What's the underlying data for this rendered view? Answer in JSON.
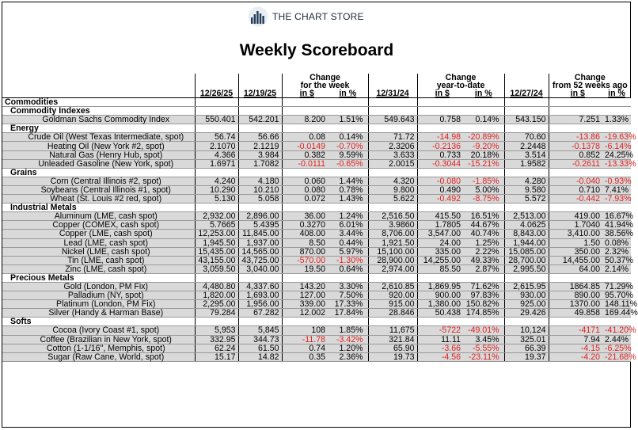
{
  "logo": {
    "text": "THE CHART STORE",
    "icon": "chart-bars-logo-icon"
  },
  "title": "Weekly Scoreboard",
  "header": {
    "groups": [
      "Change",
      "for the week",
      "Change",
      "year-to-date",
      "Change",
      "from 52 weeks ago"
    ],
    "dates": [
      "12/26/25",
      "12/19/25",
      "12/31/24",
      "12/27/24"
    ],
    "units": [
      "in $",
      "in %"
    ]
  },
  "sections": [
    {
      "label": "Commodities",
      "groups": [
        {
          "label": "Commodity Indexes",
          "rows": [
            [
              "Goldman Sachs Commodity Index",
              "550.401",
              "542.201",
              "8.200",
              "1.51%",
              "549.643",
              "0.758",
              "0.14%",
              "543.150",
              "7.251",
              "1.33%"
            ]
          ]
        },
        {
          "label": "Energy",
          "rows": [
            [
              "Crude Oil (West Texas Intermediate, spot)",
              "56.74",
              "56.66",
              "0.08",
              "0.14%",
              "71.72",
              "-14.98",
              "-20.89%",
              "70.60",
              "-13.86",
              "-19.63%"
            ],
            [
              "Heating Oil (New York #2, spot)",
              "2.1070",
              "2.1219",
              "-0.0149",
              "-0.70%",
              "2.3206",
              "-0.2136",
              "-9.20%",
              "2.2448",
              "-0.1378",
              "-6.14%"
            ],
            [
              "Natural Gas (Henry Hub, spot)",
              "4.366",
              "3.984",
              "0.382",
              "9.59%",
              "3.633",
              "0.733",
              "20.18%",
              "3.514",
              "0.852",
              "24.25%"
            ],
            [
              "Unleaded Gasoline (New York, spot)",
              "1.6971",
              "1.7082",
              "-0.0111",
              "-0.65%",
              "2.0015",
              "-0.3044",
              "-15.21%",
              "1.9582",
              "-0.2611",
              "-13.33%"
            ]
          ]
        },
        {
          "label": "Grains",
          "rows": [
            [
              "Corn (Central Illinois #2, spot)",
              "4.240",
              "4.180",
              "0.060",
              "1.44%",
              "4.320",
              "-0.080",
              "-1.85%",
              "4.280",
              "-0.040",
              "-0.93%"
            ],
            [
              "Soybeans (Central Illinois #1, spot)",
              "10.290",
              "10.210",
              "0.080",
              "0.78%",
              "9.800",
              "0.490",
              "5.00%",
              "9.580",
              "0.710",
              "7.41%"
            ],
            [
              "Wheat (St. Louis #2 red, spot)",
              "5.130",
              "5.058",
              "0.072",
              "1.43%",
              "5.622",
              "-0.492",
              "-8.75%",
              "5.572",
              "-0.442",
              "-7.93%"
            ]
          ]
        },
        {
          "label": "Industrial Metals",
          "rows": [
            [
              "Aluminum (LME, cash spot)",
              "2,932.00",
              "2,896.00",
              "36.00",
              "1.24%",
              "2,516.50",
              "415.50",
              "16.51%",
              "2,513.00",
              "419.00",
              "16.67%"
            ],
            [
              "Copper (COMEX, cash spot)",
              "5.7665",
              "5.4395",
              "0.3270",
              "6.01%",
              "3.9860",
              "1.7805",
              "44.67%",
              "4.0625",
              "1.7040",
              "41.94%"
            ],
            [
              "Copper (LME, cash spot)",
              "12,253.00",
              "11,845.00",
              "408.00",
              "3.44%",
              "8,706.00",
              "3,547.00",
              "40.74%",
              "8,843.00",
              "3,410.00",
              "38.56%"
            ],
            [
              "Lead (LME, cash spot)",
              "1,945.50",
              "1,937.00",
              "8.50",
              "0.44%",
              "1,921.50",
              "24.00",
              "1.25%",
              "1,944.00",
              "1.50",
              "0.08%"
            ],
            [
              "Nickel (LME, cash spot)",
              "15,435.00",
              "14,565.00",
              "870.00",
              "5.97%",
              "15,100.00",
              "335.00",
              "2.22%",
              "15,085.00",
              "350.00",
              "2.32%"
            ],
            [
              "Tin (LME, cash spot)",
              "43,155.00",
              "43,725.00",
              "-570.00",
              "-1.30%",
              "28,900.00",
              "14,255.00",
              "49.33%",
              "28,700.00",
              "14,455.00",
              "50.37%"
            ],
            [
              "Zinc (LME, cash spot)",
              "3,059.50",
              "3,040.00",
              "19.50",
              "0.64%",
              "2,974.00",
              "85.50",
              "2.87%",
              "2,995.50",
              "64.00",
              "2.14%"
            ]
          ]
        },
        {
          "label": "Precious Metals",
          "rows": [
            [
              "Gold (London, PM Fix)",
              "4,480.80",
              "4,337.60",
              "143.20",
              "3.30%",
              "2,610.85",
              "1,869.95",
              "71.62%",
              "2,615.95",
              "1864.85",
              "71.29%"
            ],
            [
              "Palladium (NY, spot)",
              "1,820.00",
              "1,693.00",
              "127.00",
              "7.50%",
              "920.00",
              "900.00",
              "97.83%",
              "930.00",
              "890.00",
              "95.70%"
            ],
            [
              "Platinum (London, PM Fix)",
              "2,295.00",
              "1,956.00",
              "339.00",
              "17.33%",
              "915.00",
              "1,380.00",
              "150.82%",
              "925.00",
              "1370.00",
              "148.11%"
            ],
            [
              "Silver (Handy & Harman Base)",
              "79.284",
              "67.282",
              "12.002",
              "17.84%",
              "28.846",
              "50.438",
              "174.85%",
              "29.426",
              "49.858",
              "169.44%"
            ]
          ]
        },
        {
          "label": "Softs",
          "rows": [
            [
              "Cocoa (Ivory Coast #1, spot)",
              "5,953",
              "5,845",
              "108",
              "1.85%",
              "11,675",
              "-5722",
              "-49.01%",
              "10,124",
              "-4171",
              "-41.20%"
            ],
            [
              "Coffee (Brazilian in New York, spot)",
              "332.95",
              "344.73",
              "-11.78",
              "-3.42%",
              "321.84",
              "11.11",
              "3.45%",
              "325.01",
              "7.94",
              "2.44%"
            ],
            [
              "Cotton (1-1/16\", Memphis, spot)",
              "62.24",
              "61.50",
              "0.74",
              "1.20%",
              "65.90",
              "-3.66",
              "-5.55%",
              "66.39",
              "-4.15",
              "-6.25%"
            ],
            [
              "Sugar (Raw Cane, World, spot)",
              "15.17",
              "14.82",
              "0.35",
              "2.36%",
              "19.73",
              "-4.56",
              "-23.11%",
              "19.37",
              "-4.20",
              "-21.68%"
            ]
          ]
        }
      ]
    }
  ]
}
